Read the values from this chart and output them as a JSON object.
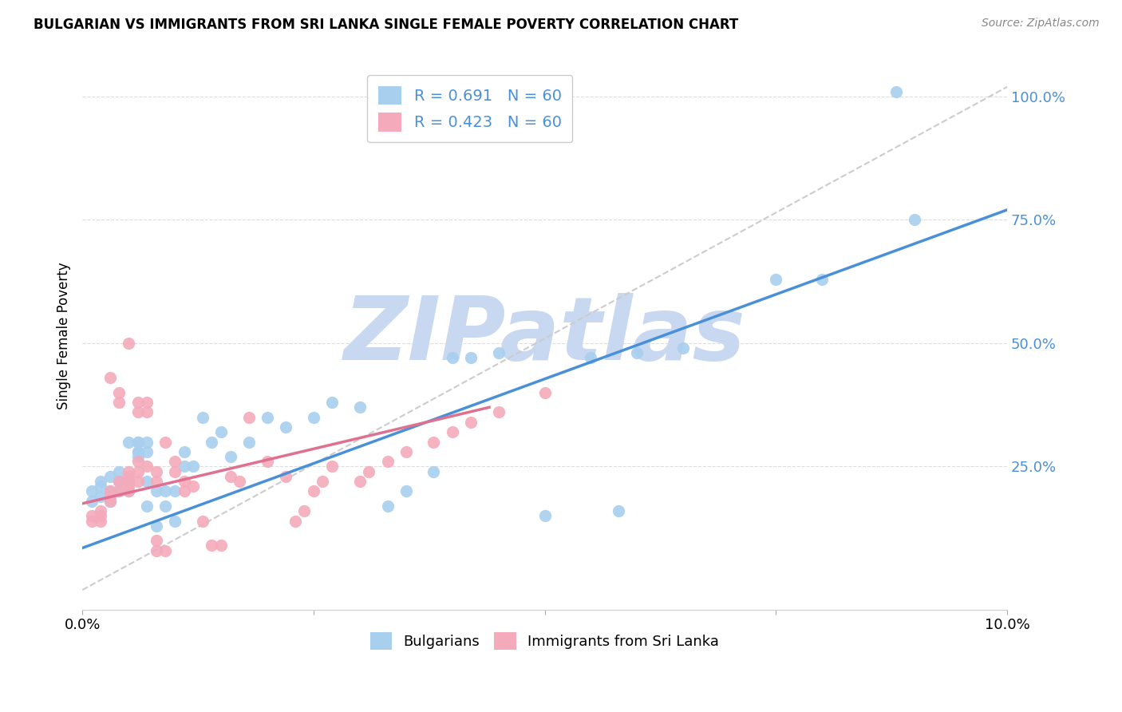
{
  "title": "BULGARIAN VS IMMIGRANTS FROM SRI LANKA SINGLE FEMALE POVERTY CORRELATION CHART",
  "source": "Source: ZipAtlas.com",
  "ylabel": "Single Female Poverty",
  "x_min": 0.0,
  "x_max": 0.1,
  "y_min": -0.04,
  "y_max": 1.07,
  "x_ticks": [
    0.0,
    0.025,
    0.05,
    0.075,
    0.1
  ],
  "x_tick_labels": [
    "0.0%",
    "",
    "",
    "",
    "10.0%"
  ],
  "y_ticks": [
    0.25,
    0.5,
    0.75,
    1.0
  ],
  "y_tick_labels": [
    "25.0%",
    "50.0%",
    "75.0%",
    "100.0%"
  ],
  "legend_r1": "R = 0.691",
  "legend_n1": "N = 60",
  "legend_r2": "R = 0.423",
  "legend_n2": "N = 60",
  "color_blue": "#A8CFEE",
  "color_pink": "#F4AABB",
  "line_blue": "#4A90D9",
  "line_pink": "#E07090",
  "line_dashed_color": "#CCCCCC",
  "watermark": "ZIPatlas",
  "watermark_color": "#C8D8F0",
  "blue_points": [
    [
      0.001,
      0.18
    ],
    [
      0.001,
      0.2
    ],
    [
      0.002,
      0.22
    ],
    [
      0.002,
      0.19
    ],
    [
      0.002,
      0.21
    ],
    [
      0.003,
      0.23
    ],
    [
      0.003,
      0.18
    ],
    [
      0.003,
      0.2
    ],
    [
      0.004,
      0.22
    ],
    [
      0.004,
      0.2
    ],
    [
      0.004,
      0.22
    ],
    [
      0.004,
      0.24
    ],
    [
      0.005,
      0.2
    ],
    [
      0.005,
      0.22
    ],
    [
      0.005,
      0.2
    ],
    [
      0.005,
      0.22
    ],
    [
      0.005,
      0.3
    ],
    [
      0.006,
      0.28
    ],
    [
      0.006,
      0.3
    ],
    [
      0.006,
      0.28
    ],
    [
      0.006,
      0.3
    ],
    [
      0.006,
      0.27
    ],
    [
      0.007,
      0.28
    ],
    [
      0.007,
      0.3
    ],
    [
      0.007,
      0.22
    ],
    [
      0.007,
      0.17
    ],
    [
      0.008,
      0.13
    ],
    [
      0.008,
      0.2
    ],
    [
      0.009,
      0.17
    ],
    [
      0.009,
      0.2
    ],
    [
      0.01,
      0.14
    ],
    [
      0.01,
      0.2
    ],
    [
      0.011,
      0.25
    ],
    [
      0.011,
      0.28
    ],
    [
      0.012,
      0.25
    ],
    [
      0.013,
      0.35
    ],
    [
      0.014,
      0.3
    ],
    [
      0.015,
      0.32
    ],
    [
      0.016,
      0.27
    ],
    [
      0.018,
      0.3
    ],
    [
      0.02,
      0.35
    ],
    [
      0.022,
      0.33
    ],
    [
      0.025,
      0.35
    ],
    [
      0.027,
      0.38
    ],
    [
      0.03,
      0.37
    ],
    [
      0.033,
      0.17
    ],
    [
      0.035,
      0.2
    ],
    [
      0.038,
      0.24
    ],
    [
      0.04,
      0.47
    ],
    [
      0.042,
      0.47
    ],
    [
      0.045,
      0.48
    ],
    [
      0.05,
      0.15
    ],
    [
      0.055,
      0.47
    ],
    [
      0.058,
      0.16
    ],
    [
      0.06,
      0.48
    ],
    [
      0.065,
      0.49
    ],
    [
      0.075,
      0.63
    ],
    [
      0.08,
      0.63
    ],
    [
      0.088,
      1.01
    ],
    [
      0.09,
      0.75
    ]
  ],
  "pink_points": [
    [
      0.001,
      0.14
    ],
    [
      0.001,
      0.15
    ],
    [
      0.002,
      0.16
    ],
    [
      0.002,
      0.14
    ],
    [
      0.002,
      0.15
    ],
    [
      0.003,
      0.19
    ],
    [
      0.003,
      0.2
    ],
    [
      0.003,
      0.18
    ],
    [
      0.003,
      0.43
    ],
    [
      0.004,
      0.2
    ],
    [
      0.004,
      0.22
    ],
    [
      0.004,
      0.38
    ],
    [
      0.004,
      0.4
    ],
    [
      0.005,
      0.21
    ],
    [
      0.005,
      0.23
    ],
    [
      0.005,
      0.2
    ],
    [
      0.005,
      0.22
    ],
    [
      0.005,
      0.24
    ],
    [
      0.005,
      0.5
    ],
    [
      0.006,
      0.22
    ],
    [
      0.006,
      0.24
    ],
    [
      0.006,
      0.26
    ],
    [
      0.006,
      0.36
    ],
    [
      0.006,
      0.38
    ],
    [
      0.007,
      0.36
    ],
    [
      0.007,
      0.38
    ],
    [
      0.007,
      0.25
    ],
    [
      0.008,
      0.22
    ],
    [
      0.008,
      0.24
    ],
    [
      0.008,
      0.08
    ],
    [
      0.008,
      0.1
    ],
    [
      0.009,
      0.08
    ],
    [
      0.009,
      0.3
    ],
    [
      0.01,
      0.26
    ],
    [
      0.01,
      0.24
    ],
    [
      0.011,
      0.22
    ],
    [
      0.011,
      0.2
    ],
    [
      0.012,
      0.21
    ],
    [
      0.013,
      0.14
    ],
    [
      0.014,
      0.09
    ],
    [
      0.015,
      0.09
    ],
    [
      0.016,
      0.23
    ],
    [
      0.017,
      0.22
    ],
    [
      0.018,
      0.35
    ],
    [
      0.02,
      0.26
    ],
    [
      0.022,
      0.23
    ],
    [
      0.023,
      0.14
    ],
    [
      0.024,
      0.16
    ],
    [
      0.025,
      0.2
    ],
    [
      0.026,
      0.22
    ],
    [
      0.027,
      0.25
    ],
    [
      0.03,
      0.22
    ],
    [
      0.031,
      0.24
    ],
    [
      0.033,
      0.26
    ],
    [
      0.035,
      0.28
    ],
    [
      0.038,
      0.3
    ],
    [
      0.04,
      0.32
    ],
    [
      0.042,
      0.34
    ],
    [
      0.045,
      0.36
    ],
    [
      0.05,
      0.4
    ]
  ],
  "blue_line_x": [
    0.0,
    0.1
  ],
  "blue_line_y": [
    0.085,
    0.77
  ],
  "pink_line_x": [
    0.0,
    0.044
  ],
  "pink_line_y": [
    0.175,
    0.37
  ],
  "dashed_line_x": [
    0.0,
    0.105
  ],
  "dashed_line_y": [
    0.0,
    1.07
  ]
}
